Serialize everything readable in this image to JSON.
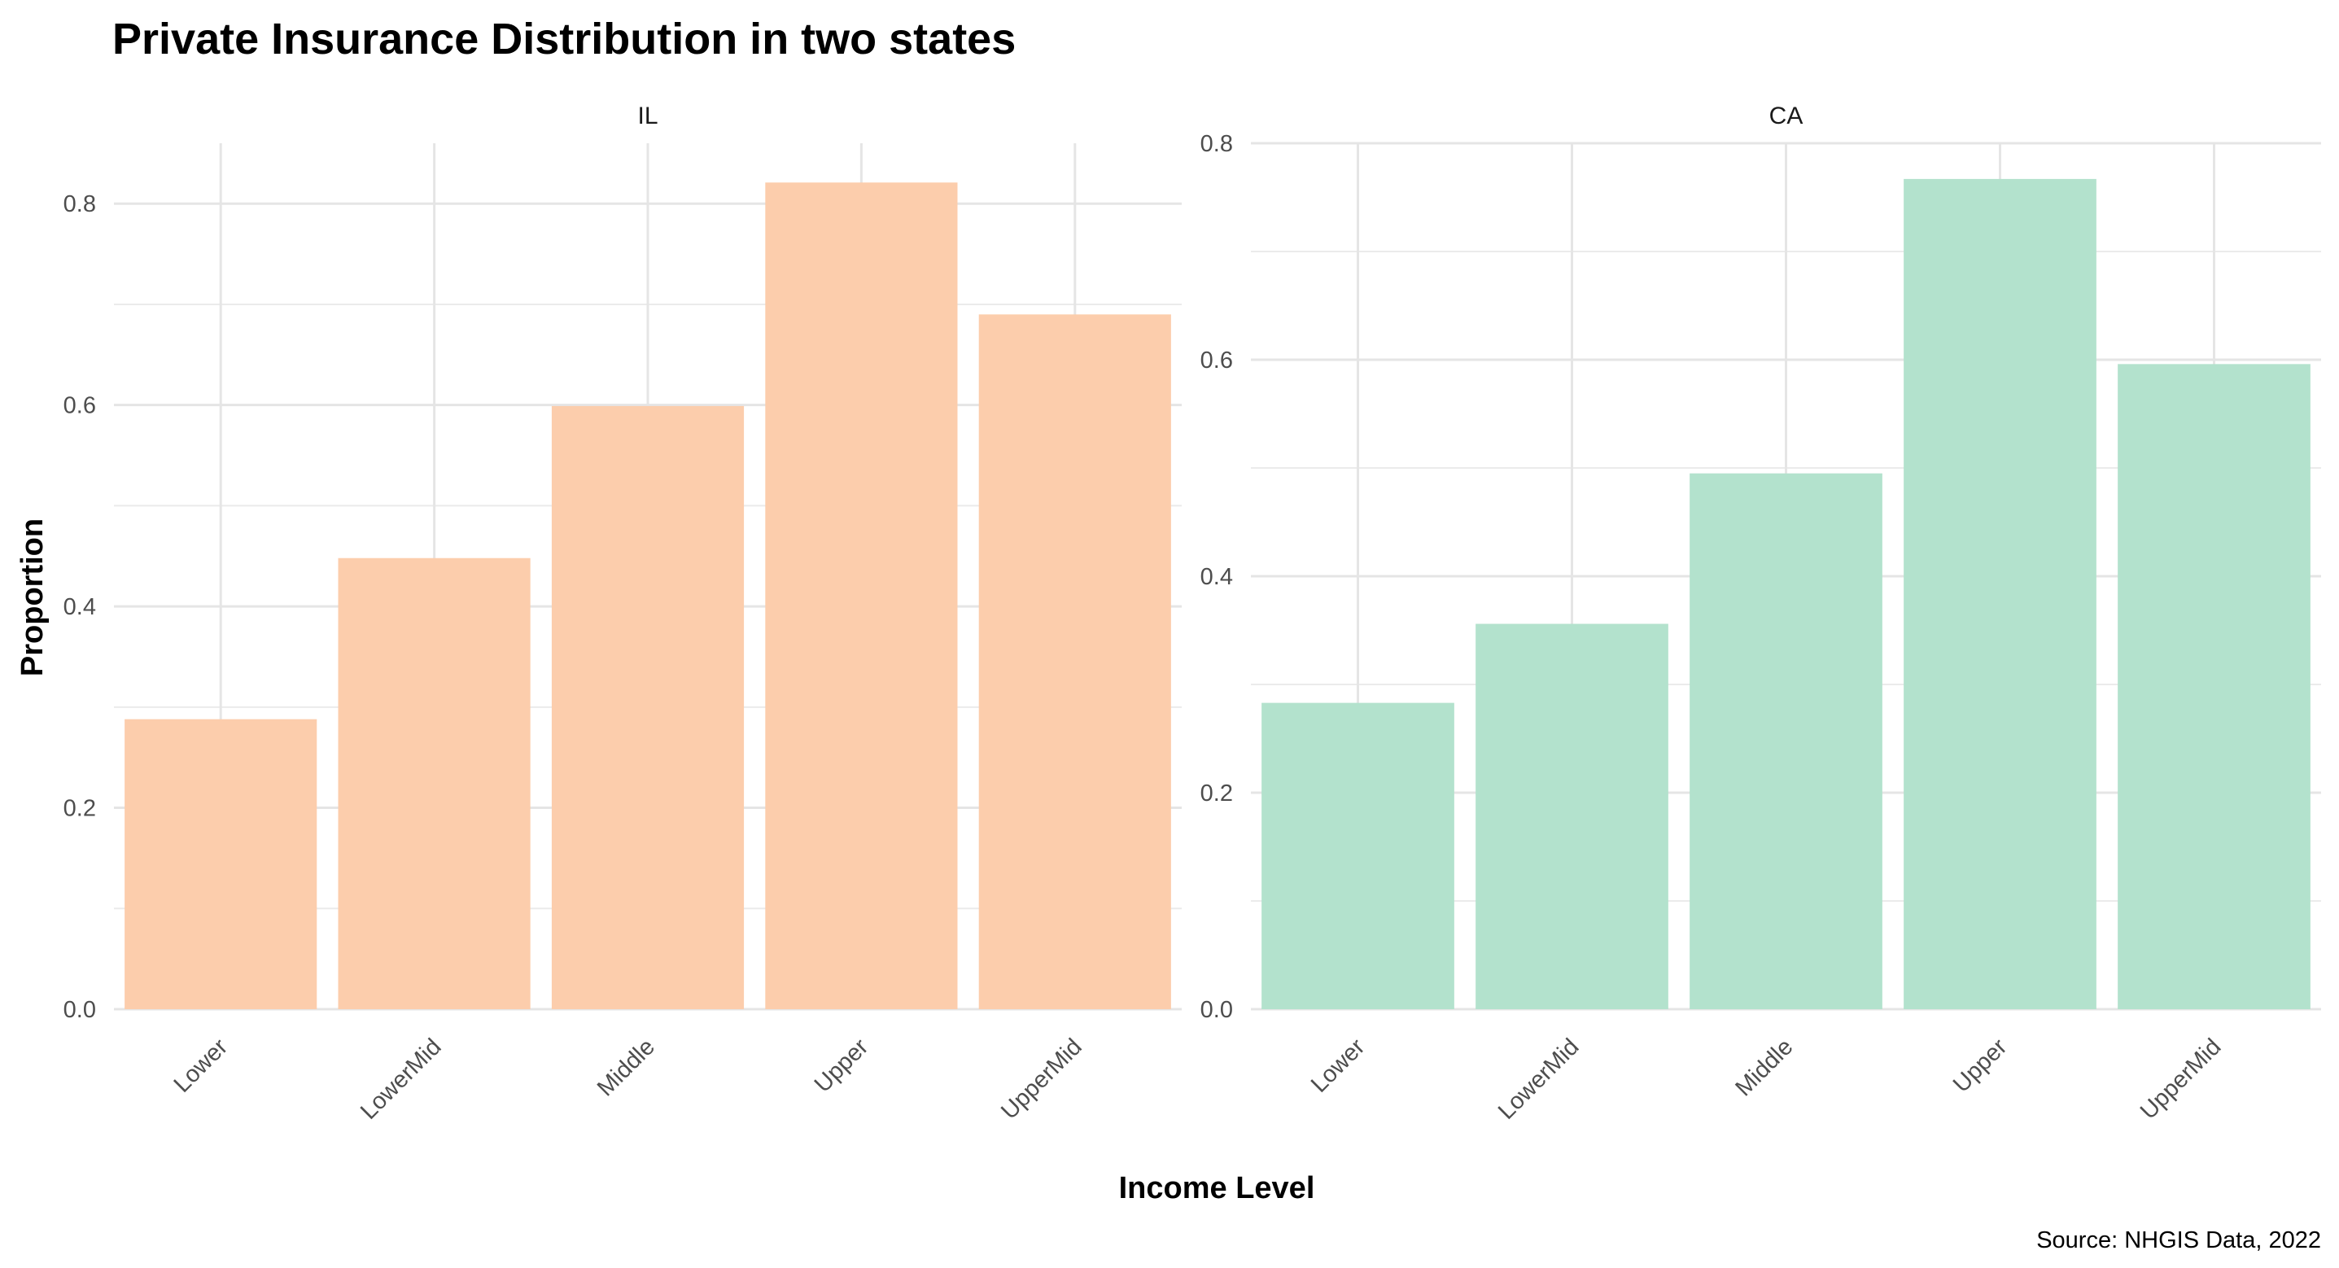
{
  "chart_data": {
    "type": "bar",
    "title": "Private Insurance Distribution in two states",
    "xlabel": "Income Level",
    "ylabel": "Proportion",
    "caption": "Source: NHGIS Data, 2022",
    "categories": [
      "Lower",
      "LowerMid",
      "Middle",
      "Upper",
      "UpperMid"
    ],
    "grid": true,
    "legend": "none",
    "panels": [
      {
        "name": "IL",
        "color": "#FCCDAC",
        "values": [
          0.288,
          0.448,
          0.599,
          0.821,
          0.69
        ],
        "ylim": [
          0,
          0.86
        ],
        "yticks": [
          0.0,
          0.2,
          0.4,
          0.6,
          0.8
        ],
        "ytick_labels": [
          "0.0",
          "0.2",
          "0.4",
          "0.6",
          "0.8"
        ]
      },
      {
        "name": "CA",
        "color": "#B3E2CD",
        "values": [
          0.283,
          0.356,
          0.495,
          0.767,
          0.596
        ],
        "ylim": [
          0,
          0.8
        ],
        "yticks": [
          0.0,
          0.2,
          0.4,
          0.6,
          0.8
        ],
        "ytick_labels": [
          "0.0",
          "0.2",
          "0.4",
          "0.6",
          "0.8"
        ]
      }
    ]
  }
}
